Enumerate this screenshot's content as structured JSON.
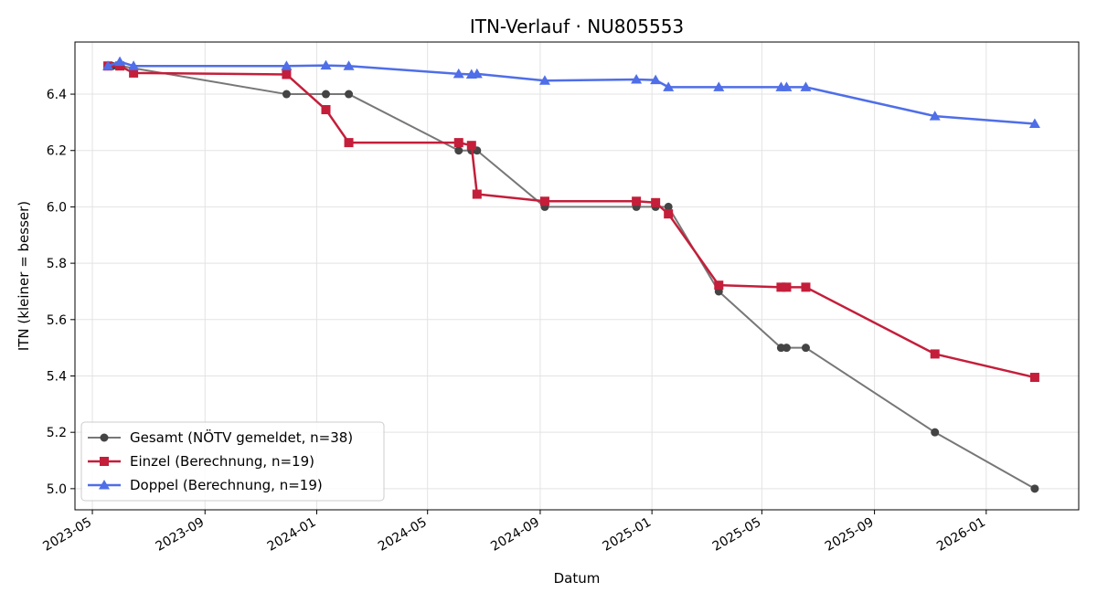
{
  "chart_data": {
    "type": "line",
    "title": "ITN-Verlauf · NU805553",
    "xlabel": "Datum",
    "ylabel": "ITN  (kleiner = besser)",
    "ylim": [
      4.925,
      6.585
    ],
    "xlim": [
      "2023-04-12",
      "2026-04-12"
    ],
    "yticks": [
      5.0,
      5.2,
      5.4,
      5.6,
      5.8,
      6.0,
      6.2,
      6.4
    ],
    "ytick_labels": [
      "5.0",
      "5.2",
      "5.4",
      "5.6",
      "5.8",
      "6.0",
      "6.2",
      "6.4"
    ],
    "xticks": [
      "2023-05-01",
      "2023-09-01",
      "2024-01-01",
      "2024-05-01",
      "2024-09-01",
      "2025-01-01",
      "2025-05-01",
      "2025-09-01",
      "2026-01-01"
    ],
    "xtick_labels": [
      "2023-05",
      "2023-09",
      "2024-01",
      "2024-05",
      "2024-09",
      "2025-01",
      "2025-05",
      "2025-09",
      "2026-01"
    ],
    "grid": true,
    "legend_position": "bottom-left",
    "series": [
      {
        "name": "Gesamt (NÖTV gemeldet, n=38)",
        "color": "#444444",
        "line_color": "#777777",
        "marker": "circle",
        "points": [
          {
            "x": "2023-05-18",
            "y": 6.5
          },
          {
            "x": "2023-05-23",
            "y": 6.5
          },
          {
            "x": "2023-06-01",
            "y": 6.5
          },
          {
            "x": "2023-11-29",
            "y": 6.4
          },
          {
            "x": "2024-01-11",
            "y": 6.4
          },
          {
            "x": "2024-02-05",
            "y": 6.4
          },
          {
            "x": "2024-06-04",
            "y": 6.2
          },
          {
            "x": "2024-06-18",
            "y": 6.2
          },
          {
            "x": "2024-06-24",
            "y": 6.2
          },
          {
            "x": "2024-09-06",
            "y": 6.0
          },
          {
            "x": "2024-12-15",
            "y": 6.0
          },
          {
            "x": "2025-01-05",
            "y": 6.0
          },
          {
            "x": "2025-01-19",
            "y": 6.0
          },
          {
            "x": "2025-03-15",
            "y": 5.7
          },
          {
            "x": "2025-05-22",
            "y": 5.5
          },
          {
            "x": "2025-05-28",
            "y": 5.5
          },
          {
            "x": "2025-06-18",
            "y": 5.5
          },
          {
            "x": "2025-11-06",
            "y": 5.2
          },
          {
            "x": "2026-02-23",
            "y": 5.0
          }
        ]
      },
      {
        "name": "Einzel (Berechnung, n=19)",
        "color": "#c41e3a",
        "line_color": "#c41e3a",
        "marker": "square",
        "points": [
          {
            "x": "2023-05-18",
            "y": 6.5
          },
          {
            "x": "2023-05-31",
            "y": 6.5
          },
          {
            "x": "2023-06-15",
            "y": 6.475
          },
          {
            "x": "2023-11-29",
            "y": 6.47
          },
          {
            "x": "2024-01-11",
            "y": 6.345
          },
          {
            "x": "2024-02-05",
            "y": 6.228
          },
          {
            "x": "2024-06-04",
            "y": 6.228
          },
          {
            "x": "2024-06-18",
            "y": 6.218
          },
          {
            "x": "2024-06-24",
            "y": 6.045
          },
          {
            "x": "2024-09-06",
            "y": 6.02
          },
          {
            "x": "2024-12-15",
            "y": 6.02
          },
          {
            "x": "2025-01-05",
            "y": 6.015
          },
          {
            "x": "2025-01-19",
            "y": 5.975
          },
          {
            "x": "2025-03-15",
            "y": 5.722
          },
          {
            "x": "2025-05-22",
            "y": 5.715
          },
          {
            "x": "2025-05-28",
            "y": 5.715
          },
          {
            "x": "2025-06-18",
            "y": 5.715
          },
          {
            "x": "2025-11-06",
            "y": 5.478
          },
          {
            "x": "2026-02-23",
            "y": 5.395
          }
        ]
      },
      {
        "name": "Doppel (Berechnung, n=19)",
        "color": "#4f6ee8",
        "line_color": "#4f6ee8",
        "marker": "triangle",
        "points": [
          {
            "x": "2023-05-18",
            "y": 6.5
          },
          {
            "x": "2023-05-31",
            "y": 6.515
          },
          {
            "x": "2023-06-15",
            "y": 6.5
          },
          {
            "x": "2023-11-29",
            "y": 6.5
          },
          {
            "x": "2024-01-11",
            "y": 6.502
          },
          {
            "x": "2024-02-05",
            "y": 6.5
          },
          {
            "x": "2024-06-04",
            "y": 6.472
          },
          {
            "x": "2024-06-18",
            "y": 6.47
          },
          {
            "x": "2024-06-24",
            "y": 6.472
          },
          {
            "x": "2024-09-06",
            "y": 6.448
          },
          {
            "x": "2024-12-15",
            "y": 6.452
          },
          {
            "x": "2025-01-05",
            "y": 6.45
          },
          {
            "x": "2025-01-19",
            "y": 6.425
          },
          {
            "x": "2025-03-15",
            "y": 6.425
          },
          {
            "x": "2025-05-22",
            "y": 6.425
          },
          {
            "x": "2025-05-28",
            "y": 6.425
          },
          {
            "x": "2025-06-18",
            "y": 6.425
          },
          {
            "x": "2025-11-06",
            "y": 6.322
          },
          {
            "x": "2026-02-23",
            "y": 6.295
          }
        ]
      }
    ]
  }
}
